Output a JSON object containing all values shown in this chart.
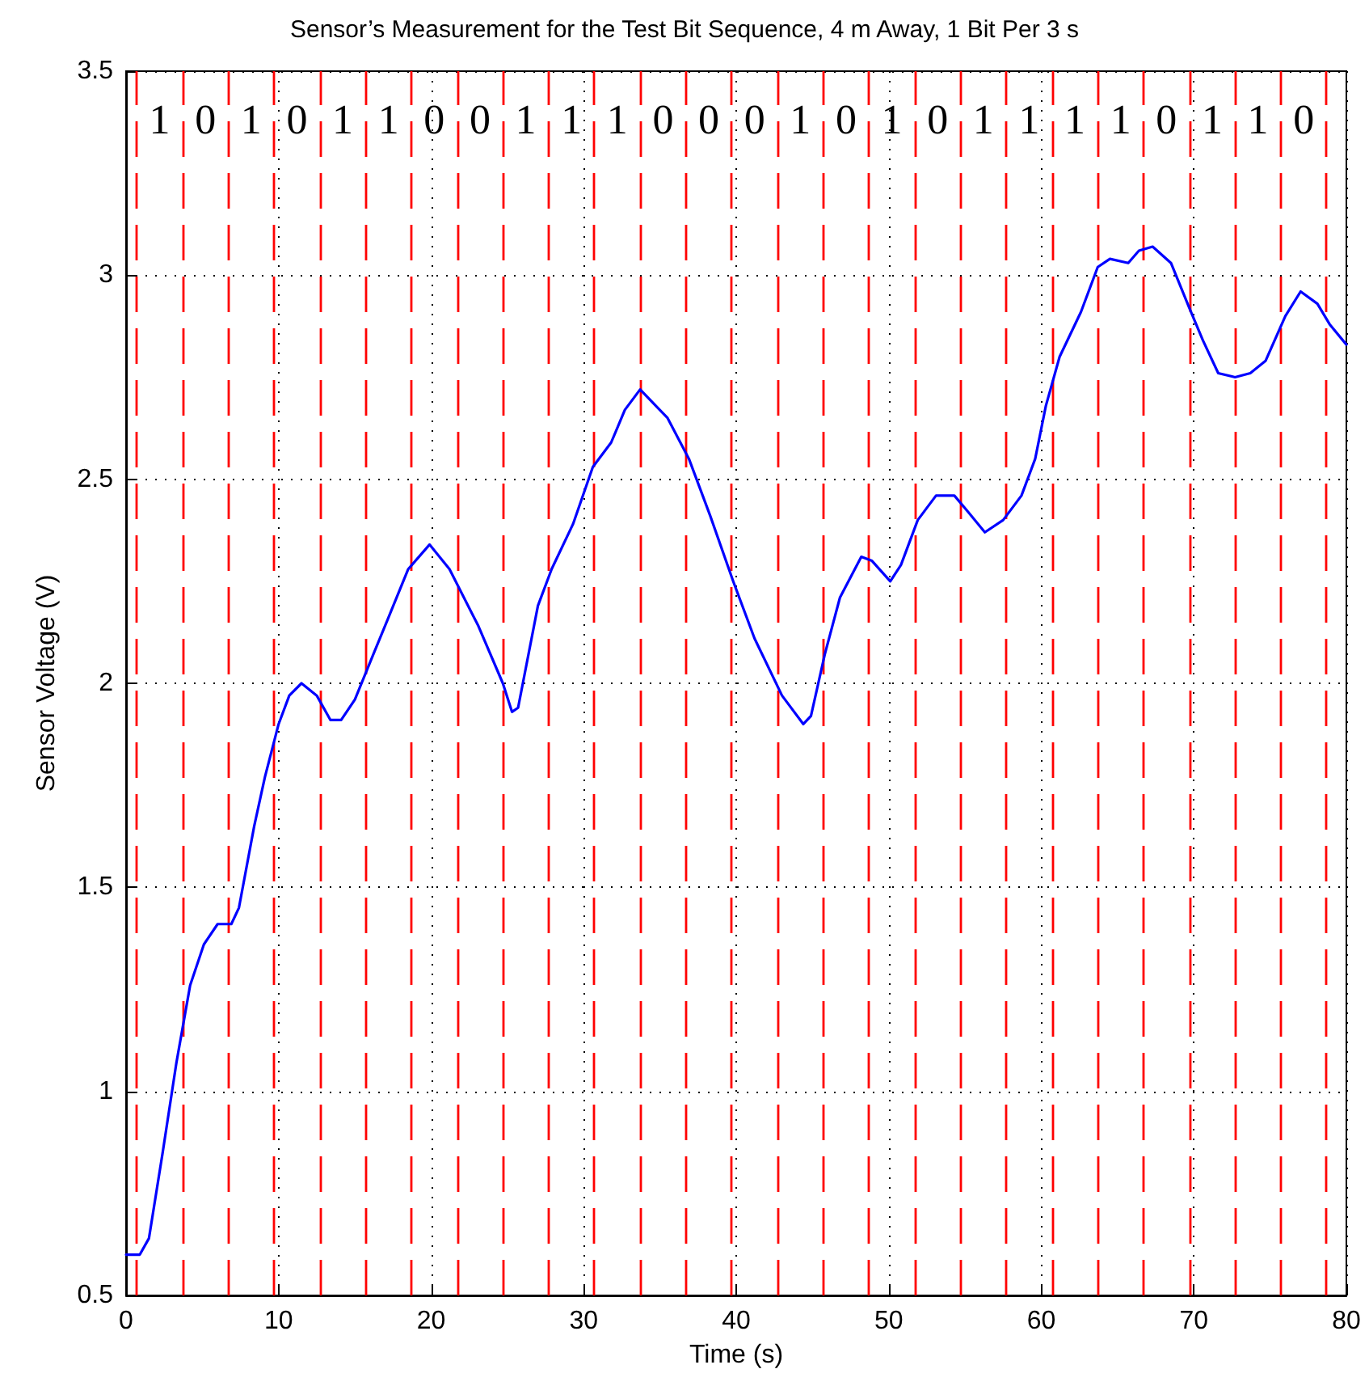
{
  "chart_data": {
    "type": "line",
    "title": "Sensor’s Measurement for the Test Bit Sequence, 4 m Away, 1 Bit Per 3 s",
    "xlabel": "Time (s)",
    "ylabel": "Sensor Voltage (V)",
    "xlim": [
      0,
      80
    ],
    "xticks": [
      0,
      10,
      20,
      30,
      40,
      50,
      60,
      70,
      80
    ],
    "ylim": [
      0.5,
      3.5
    ],
    "yticks": [
      0.5,
      1,
      1.5,
      2,
      2.5,
      3,
      3.5
    ],
    "grid": true,
    "marker": "none",
    "line_style": "solid",
    "series": [
      {
        "color": "#0000ff",
        "x": [
          0,
          0.9,
          1.5,
          2.4,
          3.3,
          4.2,
          5.1,
          6.0,
          6.9,
          7.4,
          8.4,
          9.1,
          10,
          10.7,
          11.5,
          12.5,
          13.4,
          14.1,
          15.0,
          16.2,
          17.3,
          18.5,
          19.9,
          21.2,
          23.1,
          24.7,
          25.3,
          25.7,
          27.0,
          27.9,
          29.3,
          30.6,
          31.8,
          32.7,
          33.7,
          35.5,
          36.9,
          38.3,
          39.8,
          41.2,
          43.0,
          44.4,
          44.9,
          45.8,
          46.8,
          48.2,
          48.9,
          50.1,
          50.8,
          51.9,
          53.1,
          54.3,
          55.2,
          56.3,
          57.5,
          58.7,
          59.6,
          60.3,
          61.2,
          62.6,
          63.7,
          64.5,
          65.7,
          66.4,
          67.3,
          68.5,
          69.7,
          70.6,
          71.6,
          72.7,
          73.7,
          74.7,
          76.0,
          77.0,
          78.1,
          78.9,
          80
        ],
        "values": [
          0.6,
          0.6,
          0.64,
          0.85,
          1.07,
          1.26,
          1.36,
          1.41,
          1.41,
          1.45,
          1.65,
          1.77,
          1.9,
          1.97,
          2.0,
          1.97,
          1.91,
          1.91,
          1.96,
          2.07,
          2.17,
          2.28,
          2.34,
          2.28,
          2.14,
          2.0,
          1.93,
          1.94,
          2.19,
          2.28,
          2.39,
          2.53,
          2.59,
          2.67,
          2.72,
          2.65,
          2.55,
          2.41,
          2.25,
          2.11,
          1.97,
          1.9,
          1.92,
          2.07,
          2.21,
          2.31,
          2.3,
          2.25,
          2.29,
          2.4,
          2.46,
          2.46,
          2.42,
          2.37,
          2.4,
          2.46,
          2.55,
          2.68,
          2.8,
          2.91,
          3.02,
          3.04,
          3.03,
          3.06,
          3.07,
          3.03,
          2.92,
          2.84,
          2.76,
          2.75,
          2.76,
          2.79,
          2.9,
          2.96,
          2.93,
          2.88,
          2.83
        ]
      }
    ],
    "ref_lines": [
      {
        "axis": "x",
        "value": 0.7,
        "color": "#ff0000",
        "line_style": "dashed"
      },
      {
        "axis": "x",
        "value": 3.7,
        "color": "#ff0000",
        "line_style": "dashed"
      },
      {
        "axis": "x",
        "value": 6.7,
        "color": "#ff0000",
        "line_style": "dashed"
      },
      {
        "axis": "x",
        "value": 9.7,
        "color": "#ff0000",
        "line_style": "dashed"
      },
      {
        "axis": "x",
        "value": 12.7,
        "color": "#ff0000",
        "line_style": "dashed"
      },
      {
        "axis": "x",
        "value": 15.7,
        "color": "#ff0000",
        "line_style": "dashed"
      },
      {
        "axis": "x",
        "value": 18.7,
        "color": "#ff0000",
        "line_style": "dashed"
      },
      {
        "axis": "x",
        "value": 21.7,
        "color": "#ff0000",
        "line_style": "dashed"
      },
      {
        "axis": "x",
        "value": 24.7,
        "color": "#ff0000",
        "line_style": "dashed"
      },
      {
        "axis": "x",
        "value": 27.7,
        "color": "#ff0000",
        "line_style": "dashed"
      },
      {
        "axis": "x",
        "value": 30.7,
        "color": "#ff0000",
        "line_style": "dashed"
      },
      {
        "axis": "x",
        "value": 33.7,
        "color": "#ff0000",
        "line_style": "dashed"
      },
      {
        "axis": "x",
        "value": 36.7,
        "color": "#ff0000",
        "line_style": "dashed"
      },
      {
        "axis": "x",
        "value": 39.7,
        "color": "#ff0000",
        "line_style": "dashed"
      },
      {
        "axis": "x",
        "value": 42.7,
        "color": "#ff0000",
        "line_style": "dashed"
      },
      {
        "axis": "x",
        "value": 45.7,
        "color": "#ff0000",
        "line_style": "dashed"
      },
      {
        "axis": "x",
        "value": 48.7,
        "color": "#ff0000",
        "line_style": "dashed"
      },
      {
        "axis": "x",
        "value": 51.7,
        "color": "#ff0000",
        "line_style": "dashed"
      },
      {
        "axis": "x",
        "value": 54.7,
        "color": "#ff0000",
        "line_style": "dashed"
      },
      {
        "axis": "x",
        "value": 57.7,
        "color": "#ff0000",
        "line_style": "dashed"
      },
      {
        "axis": "x",
        "value": 60.7,
        "color": "#ff0000",
        "line_style": "dashed"
      },
      {
        "axis": "x",
        "value": 63.7,
        "color": "#ff0000",
        "line_style": "dashed"
      },
      {
        "axis": "x",
        "value": 66.7,
        "color": "#ff0000",
        "line_style": "dashed"
      },
      {
        "axis": "x",
        "value": 69.7,
        "color": "#ff0000",
        "line_style": "dashed"
      },
      {
        "axis": "x",
        "value": 72.7,
        "color": "#ff0000",
        "line_style": "dashed"
      },
      {
        "axis": "x",
        "value": 75.7,
        "color": "#ff0000",
        "line_style": "dashed"
      },
      {
        "axis": "x",
        "value": 78.7,
        "color": "#ff0000",
        "line_style": "dashed"
      }
    ],
    "annotations": [
      "1",
      "0",
      "1",
      "0",
      "1",
      "1",
      "0",
      "0",
      "1",
      "1",
      "1",
      "0",
      "0",
      "0",
      "1",
      "0",
      "1",
      "0",
      "1",
      "1",
      "1",
      "1",
      "0",
      "1",
      "1",
      "0"
    ]
  }
}
